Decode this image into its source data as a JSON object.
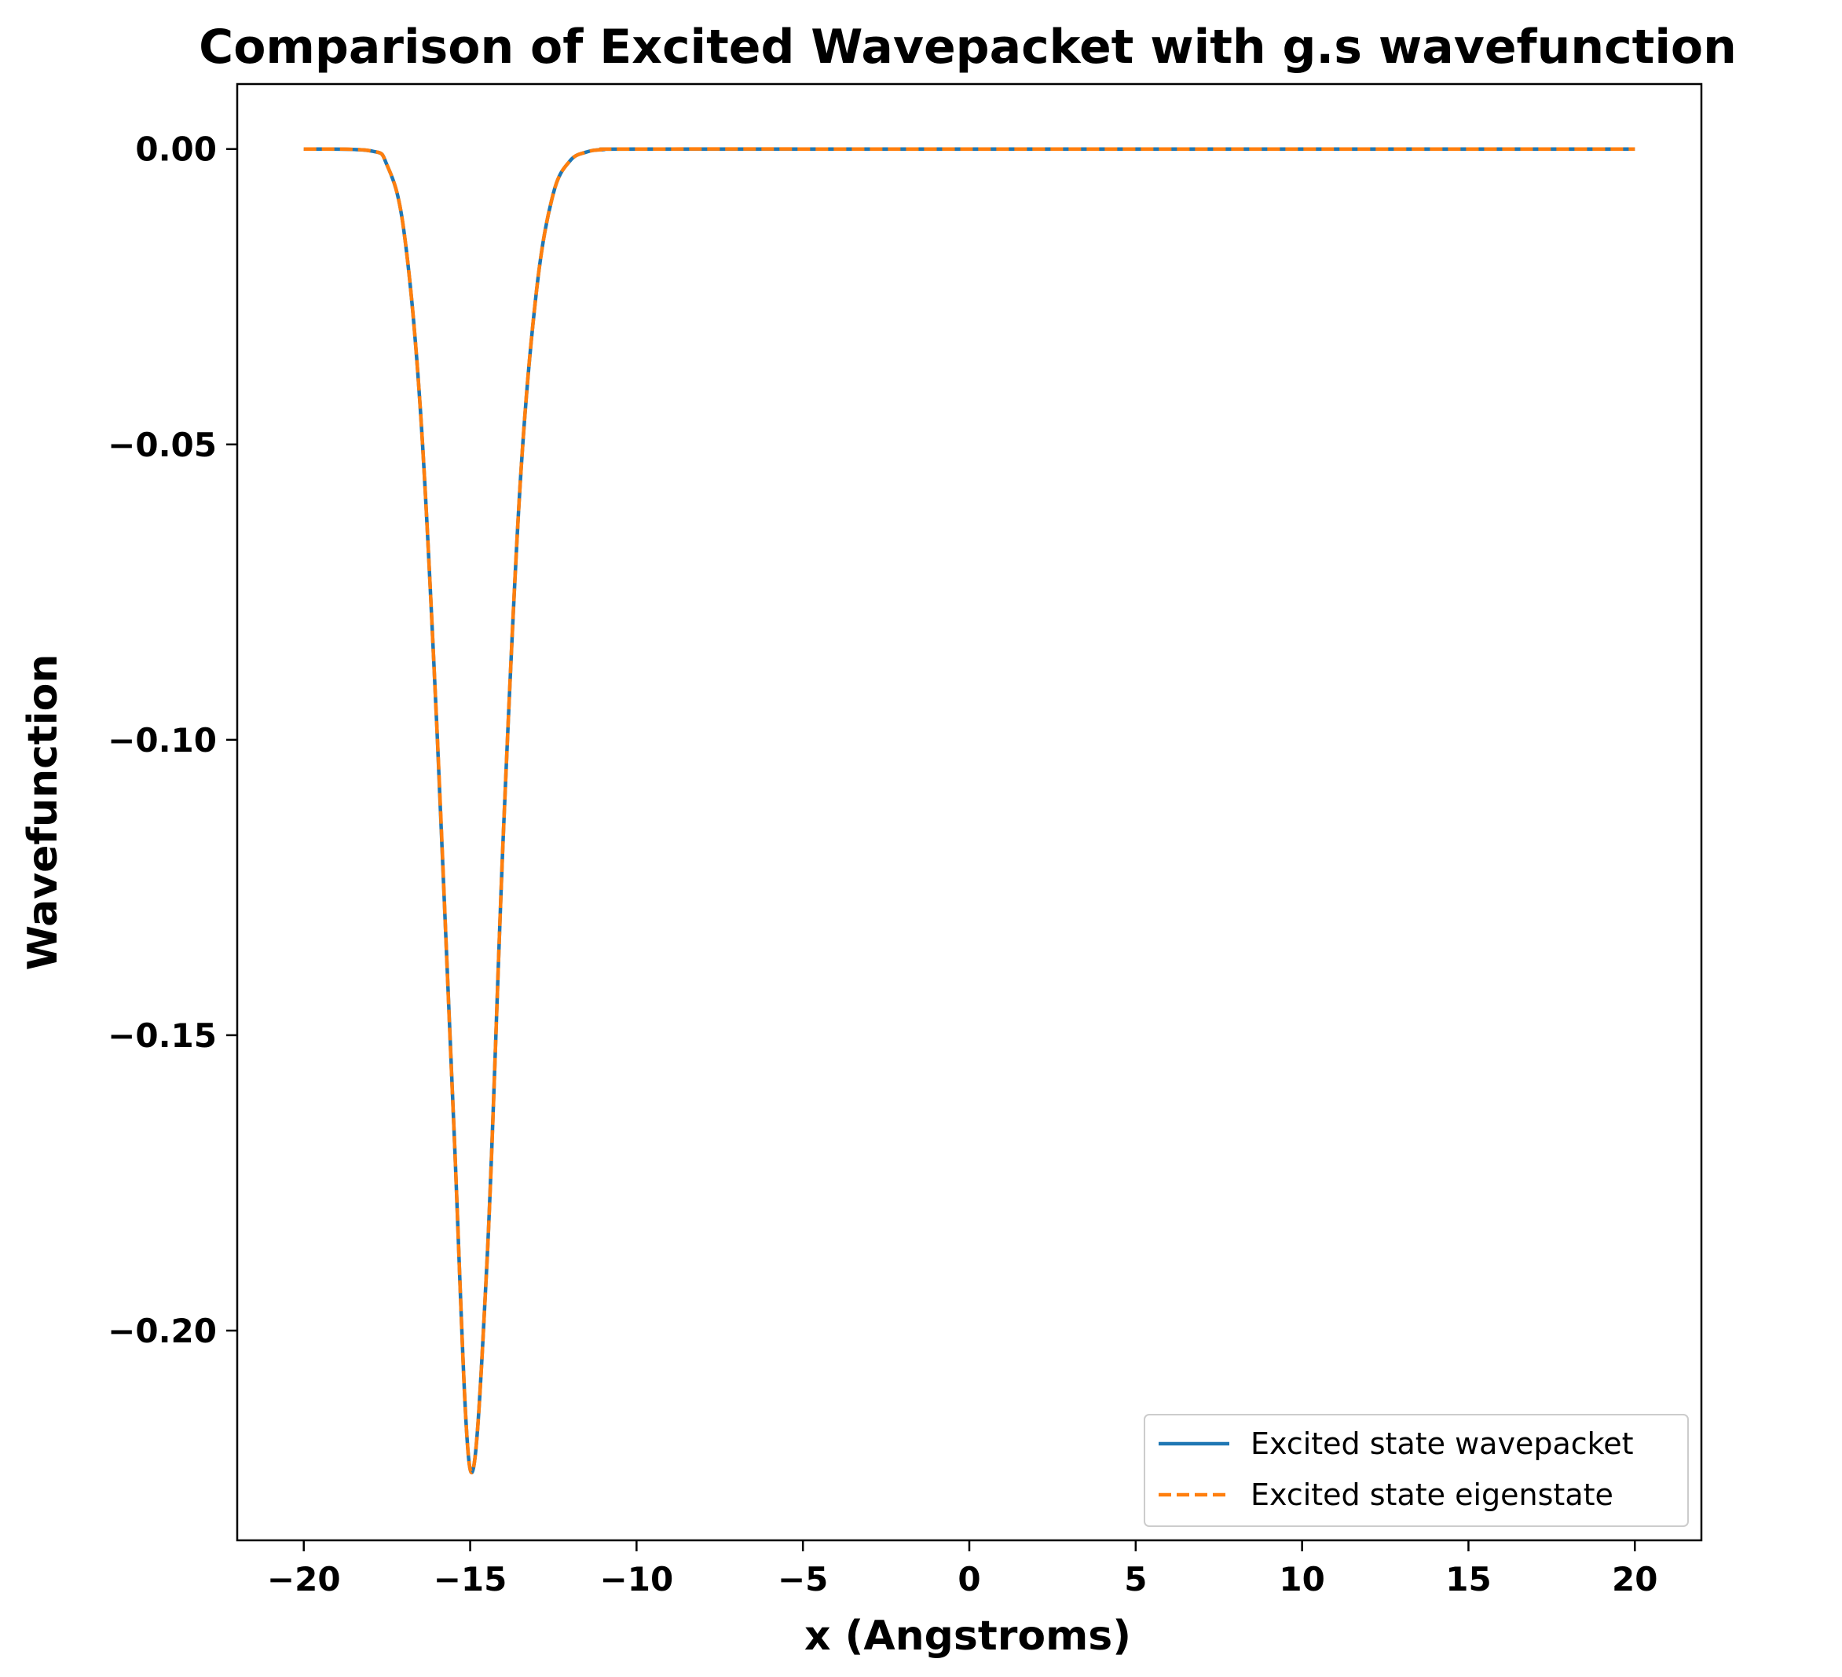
{
  "chart_data": {
    "type": "line",
    "title": "Comparison of Excited Wavepacket with g.s wavefunction",
    "xlabel": "x (Angstroms)",
    "ylabel": "Wavefunction",
    "xlim": [
      -22,
      22
    ],
    "ylim": [
      -0.2355,
      0.011
    ],
    "x_ticks": [
      -20,
      -15,
      -10,
      -5,
      0,
      5,
      10,
      15,
      20
    ],
    "x_tick_labels": [
      "−20",
      "−15",
      "−10",
      "−5",
      "0",
      "5",
      "10",
      "15",
      "20"
    ],
    "y_ticks": [
      0.0,
      -0.05,
      -0.1,
      -0.15,
      -0.2
    ],
    "y_tick_labels": [
      "0.00",
      "−0.05",
      "−0.10",
      "−0.15",
      "−0.20"
    ],
    "grid": false,
    "legend_position": "lower-right",
    "series": [
      {
        "name": "Excited state wavepacket",
        "color": "#1f77b4",
        "style": "solid",
        "x": [
          -20,
          -18,
          -17.5,
          -17,
          -16.5,
          -16,
          -15.5,
          -15,
          -14.5,
          -14,
          -13.5,
          -13,
          -12.5,
          -12,
          -11.5,
          -11,
          -10,
          0,
          10,
          20
        ],
        "y": [
          0.0,
          -0.0003,
          -0.0027,
          -0.0135,
          -0.0438,
          -0.0979,
          -0.1641,
          -0.2235,
          -0.189,
          -0.1156,
          -0.057,
          -0.0237,
          -0.0075,
          -0.002,
          -0.0005,
          -0.0001,
          0.0,
          0.0,
          0.0,
          0.0
        ]
      },
      {
        "name": "Excited state eigenstate",
        "color": "#ff7f0e",
        "style": "dashed",
        "x": [
          -20,
          -18,
          -17.5,
          -17,
          -16.5,
          -16,
          -15.5,
          -15,
          -14.5,
          -14,
          -13.5,
          -13,
          -12.5,
          -12,
          -11.5,
          -11,
          -10,
          0,
          10,
          20
        ],
        "y": [
          0.0,
          -0.0003,
          -0.0027,
          -0.0135,
          -0.0438,
          -0.0979,
          -0.1641,
          -0.2235,
          -0.189,
          -0.1156,
          -0.057,
          -0.0237,
          -0.0075,
          -0.002,
          -0.0005,
          -0.0001,
          0.0,
          0.0,
          0.0,
          0.0
        ]
      }
    ]
  }
}
